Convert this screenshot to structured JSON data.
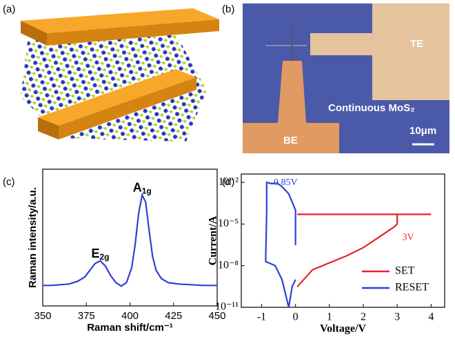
{
  "panel_labels": [
    "(a)",
    "(b)",
    "(c)",
    "(d)"
  ],
  "micrograph": {
    "labels": [
      "TE",
      "BE",
      "Continuous MoS₂",
      "10μm"
    ]
  },
  "chart_data": [
    {
      "type": "line",
      "x_label": "Raman shift/cm⁻¹",
      "y_label": "Raman intensity/a.u.",
      "x": [
        350,
        355,
        360,
        365,
        370,
        374,
        377,
        380,
        383,
        386,
        389,
        392,
        395,
        398,
        401,
        403,
        405,
        407,
        409,
        411,
        413,
        415,
        418,
        422,
        428,
        435,
        442,
        450
      ],
      "series": [
        {
          "color": "#2b3fd9",
          "values": [
            15,
            15,
            15.5,
            16,
            18,
            21,
            26,
            31,
            33,
            29,
            22,
            17,
            14.5,
            17,
            28,
            45,
            68,
            81,
            76,
            55,
            36,
            26,
            20,
            17,
            16,
            15.5,
            15,
            15
          ]
        }
      ],
      "xlim": [
        350,
        450
      ],
      "xticks": [
        350,
        375,
        400,
        425,
        450
      ],
      "ylim": [
        0,
        100
      ],
      "annotations": [
        {
          "text": "E",
          "subscript": "2g",
          "x": 383,
          "y": 38
        },
        {
          "text": "A",
          "subscript": "1g",
          "x": 407,
          "y": 86
        }
      ]
    },
    {
      "type": "line",
      "log_y": true,
      "x_label": "Voltage/V",
      "y_label": "Current/A",
      "xlim": [
        -1.6,
        4.4
      ],
      "xticks": [
        -1,
        0,
        1,
        2,
        3,
        4
      ],
      "ylim": [
        1e-11,
        0.04
      ],
      "yticks": [
        {
          "value": 1e-11,
          "label": "10⁻¹¹"
        },
        {
          "value": 1e-08,
          "label": "10⁻⁸"
        },
        {
          "value": 1e-05,
          "label": "10⁻⁵"
        },
        {
          "value": 0.01,
          "label": "10⁻²"
        }
      ],
      "legend": "lower right",
      "series": [
        {
          "name": "SET",
          "color": "#e8202a",
          "x": [
            0.05,
            0.5,
            1,
            1.5,
            2,
            2.5,
            2.9,
            3,
            3,
            4,
            0.05
          ],
          "values": [
            3e-10,
            5e-09,
            1.6e-08,
            5e-08,
            2e-07,
            1.3e-06,
            6e-06,
            1e-05,
            5e-05,
            5e-05,
            5e-05
          ]
        },
        {
          "name": "RESET",
          "color": "#2b3fd9",
          "x": [
            0,
            0,
            -0.2,
            -0.4,
            -0.55,
            -0.7,
            -0.85,
            -0.85,
            -0.88,
            -0.88,
            -0.6,
            -0.4,
            -0.2,
            -0.1,
            0
          ],
          "values": [
            3e-07,
            0.0001,
            0.0015,
            0.005,
            0.009,
            0.008,
            0.01,
            0.0001,
            3e-08,
            2e-08,
            1e-08,
            1e-09,
            1e-11,
            3e-10,
            1e-09
          ]
        }
      ],
      "annotations": [
        {
          "text": "-0.85V",
          "x": -0.74,
          "y": 0.009,
          "color": "#2b3fd9"
        },
        {
          "text": "3V",
          "x": 3.15,
          "y": 1e-06,
          "color": "#e8202a"
        }
      ]
    }
  ]
}
